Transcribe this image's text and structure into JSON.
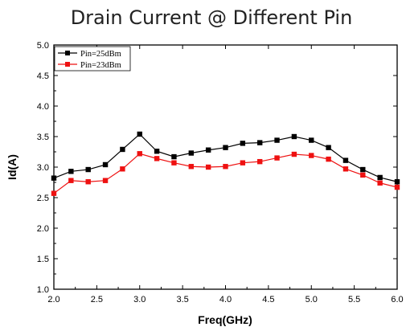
{
  "chart_data": {
    "type": "line",
    "title": "Drain Current @ Different Pin",
    "xlabel": "Freq(GHz)",
    "ylabel": "Id(A)",
    "xlim": [
      2.0,
      6.0
    ],
    "ylim": [
      1.0,
      5.0
    ],
    "x_ticks": [
      "2.0",
      "2.5",
      "3.0",
      "3.5",
      "4.0",
      "4.5",
      "5.0",
      "5.5",
      "6.0"
    ],
    "y_ticks": [
      "1.0",
      "1.5",
      "2.0",
      "2.5",
      "3.0",
      "3.5",
      "4.0",
      "4.5",
      "5.0"
    ],
    "grid": false,
    "legend_position": "top-left",
    "x": [
      2.0,
      2.2,
      2.4,
      2.6,
      2.8,
      3.0,
      3.2,
      3.4,
      3.6,
      3.8,
      4.0,
      4.2,
      4.4,
      4.6,
      4.8,
      5.0,
      5.2,
      5.4,
      5.6,
      5.8,
      6.0
    ],
    "series": [
      {
        "name": "Pin=25dBm",
        "color": "#000000",
        "values": [
          2.82,
          2.93,
          2.96,
          3.04,
          3.29,
          3.54,
          3.26,
          3.17,
          3.23,
          3.28,
          3.32,
          3.39,
          3.4,
          3.44,
          3.5,
          3.44,
          3.32,
          3.11,
          2.96,
          2.83,
          2.76
        ]
      },
      {
        "name": "Pin=23dBm",
        "color": "#ee1111",
        "values": [
          2.57,
          2.78,
          2.76,
          2.78,
          2.97,
          3.22,
          3.14,
          3.07,
          3.01,
          3.0,
          3.01,
          3.07,
          3.09,
          3.15,
          3.21,
          3.19,
          3.13,
          2.97,
          2.87,
          2.74,
          2.67
        ]
      }
    ]
  }
}
